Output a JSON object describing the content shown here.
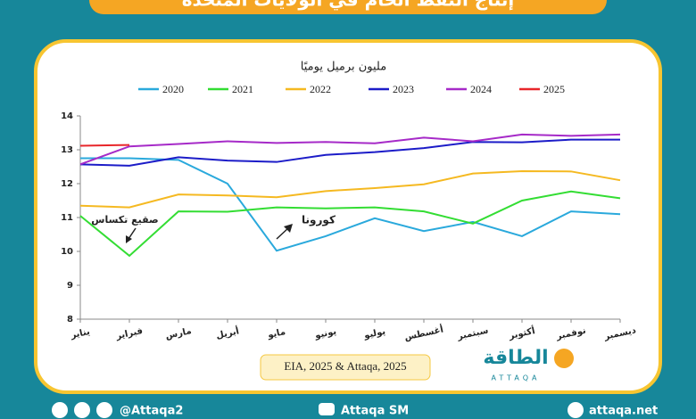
{
  "chart_data": {
    "type": "line",
    "title": "إنتاج النفط الخام في الولايات المتحدة",
    "ylabel": "مليون برميل يوميًا",
    "categories": [
      "يناير",
      "فبراير",
      "مارس",
      "أبريل",
      "مايو",
      "يونيو",
      "يوليو",
      "أغسطس",
      "سبتمبر",
      "أكتوبر",
      "نوفمبر",
      "ديسمبر"
    ],
    "series": [
      {
        "name": "2020",
        "color": "#2aa9dc",
        "values": [
          12.75,
          12.75,
          12.7,
          12.0,
          10.02,
          10.45,
          10.98,
          10.6,
          10.87,
          10.45,
          11.18,
          11.1
        ]
      },
      {
        "name": "2021",
        "color": "#33dd33",
        "values": [
          11.05,
          9.87,
          11.18,
          11.17,
          11.3,
          11.27,
          11.3,
          11.18,
          10.82,
          11.5,
          11.77,
          11.57
        ]
      },
      {
        "name": "2022",
        "color": "#f5b921",
        "values": [
          11.35,
          11.3,
          11.68,
          11.65,
          11.6,
          11.78,
          11.87,
          11.98,
          12.3,
          12.37,
          12.36,
          12.1
        ]
      },
      {
        "name": "2023",
        "color": "#1c1cc8",
        "values": [
          12.57,
          12.53,
          12.78,
          12.68,
          12.64,
          12.85,
          12.93,
          13.05,
          13.23,
          13.22,
          13.3,
          13.3
        ]
      },
      {
        "name": "2024",
        "color": "#a62ac8",
        "values": [
          12.57,
          13.1,
          13.17,
          13.25,
          13.2,
          13.23,
          13.19,
          13.36,
          13.25,
          13.45,
          13.41,
          13.45
        ]
      },
      {
        "name": "2025",
        "color": "#e8262a",
        "values": [
          13.12,
          13.14,
          null,
          null,
          null,
          null,
          null,
          null,
          null,
          null,
          null,
          null
        ]
      }
    ],
    "ylim": [
      8,
      14
    ],
    "yticks": [
      8,
      9,
      10,
      11,
      12,
      13,
      14
    ],
    "grid": false,
    "annotations": [
      "صقيع تكساس",
      "كورونا"
    ],
    "source": "EIA, 2025 & Attaqa, 2025"
  },
  "logo": {
    "ar": "الطاقة",
    "en": "ATTAQA"
  },
  "footer": {
    "social": "@Attaqa2",
    "youtube": "Attaqa SM",
    "site": "attaqa.net"
  }
}
